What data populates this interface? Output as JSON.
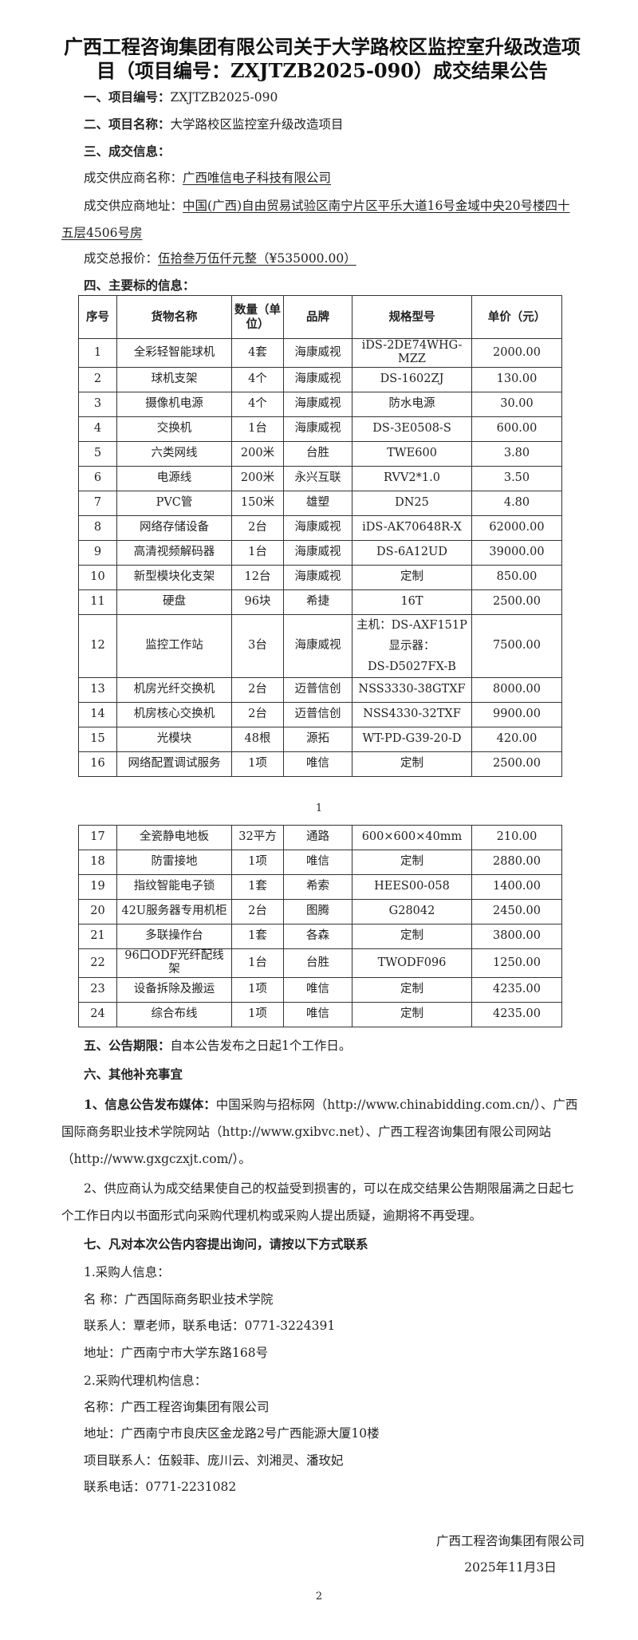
{
  "title": "广西工程咨询集团有限公司关于大学路校区监控室升级改造项目（项目编号：ZXJTZB2025-090）成交结果公告",
  "s1": {
    "label": "一、项目编号：",
    "value": "ZXJTZB2025-090"
  },
  "s2": {
    "label": "二、项目名称：",
    "value": "大学路校区监控室升级改造项目"
  },
  "s3": {
    "label": "三、成交信息："
  },
  "supplier_name": {
    "label": "成交供应商名称：",
    "value": "广西唯信电子科技有限公司"
  },
  "supplier_address": {
    "label": "成交供应商地址：",
    "value": "中国(广西)自由贸易试验区南宁片区平乐大道16号金域中央20号楼四十五层4506号房"
  },
  "total_price": {
    "label": "成交总报价：",
    "value": "伍拾叁万伍仟元整（¥535000.00）"
  },
  "s4": {
    "label": "四、主要标的信息："
  },
  "table": {
    "headers": [
      "序号",
      "货物名称",
      "数量（单位）",
      "品牌",
      "规格型号",
      "单价（元）"
    ],
    "rows_page1": [
      [
        "1",
        "全彩轻智能球机",
        "4套",
        "海康威视",
        "iDS-2DE74WHG-MZZ",
        "2000.00"
      ],
      [
        "2",
        "球机支架",
        "4个",
        "海康威视",
        "DS-1602ZJ",
        "130.00"
      ],
      [
        "3",
        "摄像机电源",
        "4个",
        "海康威视",
        "防水电源",
        "30.00"
      ],
      [
        "4",
        "交换机",
        "1台",
        "海康威视",
        "DS-3E0508-S",
        "600.00"
      ],
      [
        "5",
        "六类网线",
        "200米",
        "台胜",
        "TWE600",
        "3.80"
      ],
      [
        "6",
        "电源线",
        "200米",
        "永兴互联",
        "RVV2*1.0",
        "3.50"
      ],
      [
        "7",
        "PVC管",
        "150米",
        "雄塑",
        "DN25",
        "4.80"
      ],
      [
        "8",
        "网络存储设备",
        "2台",
        "海康威视",
        "iDS-AK70648R-X",
        "62000.00"
      ],
      [
        "9",
        "高清视频解码器",
        "1台",
        "海康威视",
        "DS-6A12UD",
        "39000.00"
      ],
      [
        "10",
        "新型模块化支架",
        "12台",
        "海康威视",
        "定制",
        "850.00"
      ],
      [
        "11",
        "硬盘",
        "96块",
        "希捷",
        "16T",
        "2500.00"
      ],
      [
        "12",
        "监控工作站",
        "3台",
        "海康威视",
        "主机：DS-AXF151P 显示器：DS-D5027FX-B",
        "7500.00"
      ],
      [
        "13",
        "机房光纤交换机",
        "2台",
        "迈普信创",
        "NSS3330-38GTXF",
        "8000.00"
      ],
      [
        "14",
        "机房核心交换机",
        "2台",
        "迈普信创",
        "NSS4330-32TXF",
        "9900.00"
      ],
      [
        "15",
        "光模块",
        "48根",
        "源拓",
        "WT-PD-G39-20-D",
        "420.00"
      ],
      [
        "16",
        "网络配置调试服务",
        "1项",
        "唯信",
        "定制",
        "2500.00"
      ]
    ],
    "row12_spec_lines": [
      "主机：DS-AXF151P",
      "显示器：",
      "DS-D5027FX-B"
    ],
    "rows_page2": [
      [
        "17",
        "全瓷静电地板",
        "32平方",
        "通路",
        "600×600×40mm",
        "210.00"
      ],
      [
        "18",
        "防雷接地",
        "1项",
        "唯信",
        "定制",
        "2880.00"
      ],
      [
        "19",
        "指纹智能电子锁",
        "1套",
        "希索",
        "HEES00-058",
        "1400.00"
      ],
      [
        "20",
        "42U服务器专用机柜",
        "2台",
        "图腾",
        "G28042",
        "2450.00"
      ],
      [
        "21",
        "多联操作台",
        "1套",
        "各森",
        "定制",
        "3800.00"
      ],
      [
        "22",
        "96口ODF光纤配线架",
        "1台",
        "台胜",
        "TWODF096",
        "1250.00"
      ],
      [
        "23",
        "设备拆除及搬运",
        "1项",
        "唯信",
        "定制",
        "4235.00"
      ],
      [
        "24",
        "综合布线",
        "1项",
        "唯信",
        "定制",
        "4235.00"
      ]
    ]
  },
  "page_number_1": "1",
  "s5": {
    "label": "五、公告期限：",
    "value": "自本公告发布之日起1个工作日。"
  },
  "s6": {
    "label": "六、其他补充事宜"
  },
  "s6_1": {
    "label": "1、信息公告发布媒体：",
    "value": "中国采购与招标网（http://www.chinabidding.com.cn/）、广西国际商务职业技术学院网站（http://www.gxibvc.net）、广西工程咨询集团有限公司网站（http://www.gxgczxjt.com/）。"
  },
  "s6_2": "2、供应商认为成交结果使自己的权益受到损害的，可以在成交结果公告期限届满之日起七个工作日内以书面形式向采购代理机构或采购人提出质疑，逾期将不再受理。",
  "s7": {
    "label": "七、凡对本次公告内容提出询问，请按以下方式联系"
  },
  "purchaser": {
    "heading": "1.采购人信息：",
    "name": "名 称：广西国际商务职业技术学院",
    "contact": "联系人：覃老师，联系电话：0771-3224391",
    "address": "地址：广西南宁市大学东路168号"
  },
  "agency": {
    "heading": "2.采购代理机构信息：",
    "name": "名称：广西工程咨询集团有限公司",
    "address": "地址：广西南宁市良庆区金龙路2号广西能源大厦10楼",
    "contacts": "项目联系人：伍毅菲、庞川云、刘湘灵、潘玫妃",
    "phone": "联系电话：0771-2231082"
  },
  "signature": {
    "company": "广西工程咨询集团有限公司",
    "date": "2025年11月3日"
  },
  "page_number_2": "2"
}
